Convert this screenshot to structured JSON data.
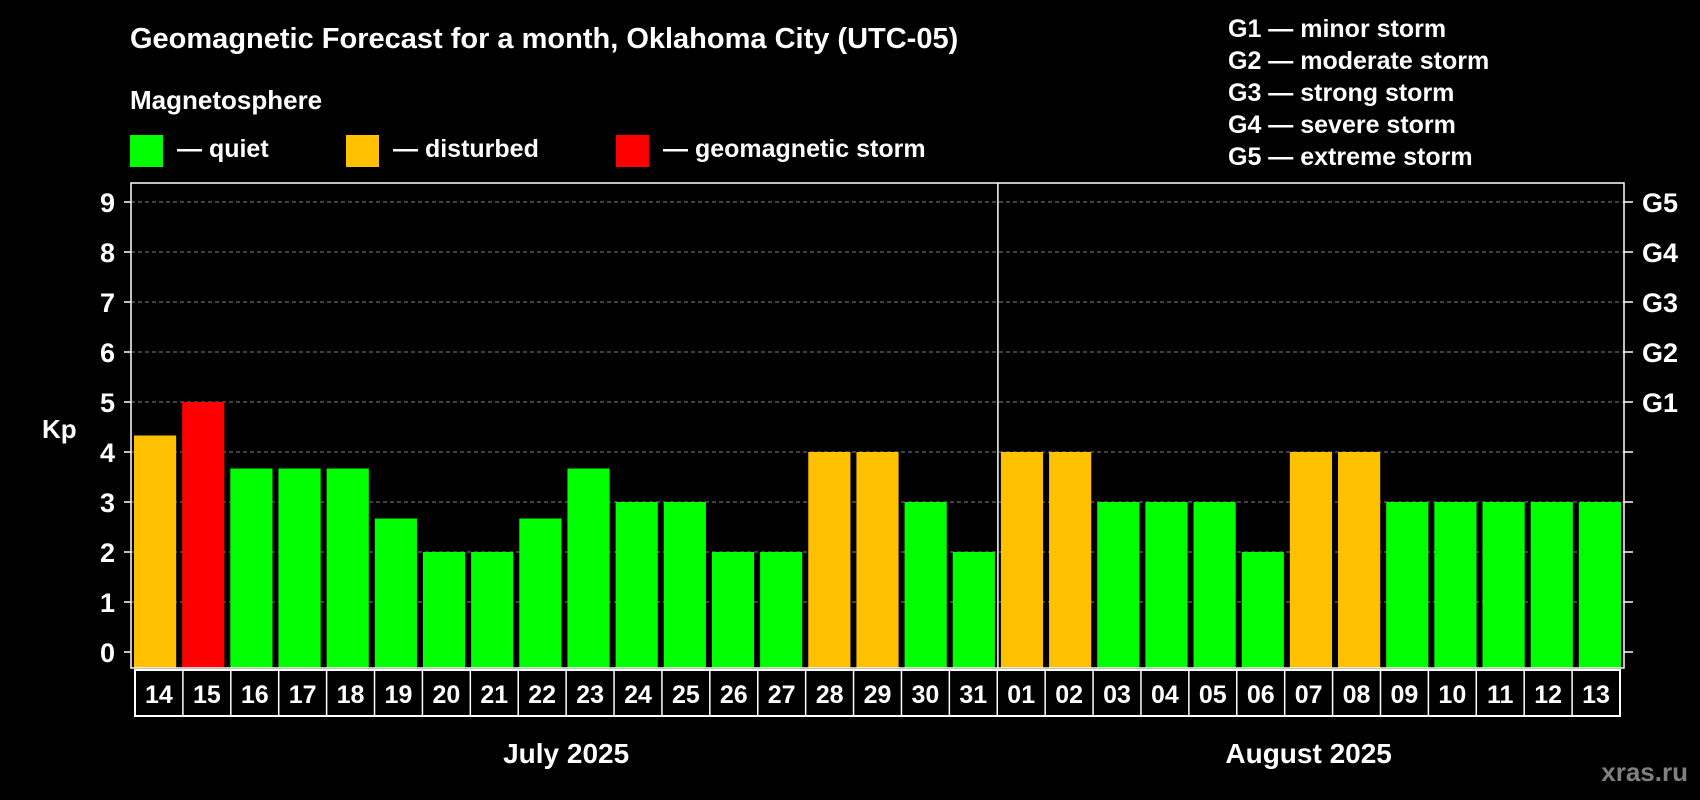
{
  "chart_data": {
    "type": "bar",
    "title": "Geomagnetic Forecast for a month, Oklahoma City (UTC-05)",
    "subtitle": "Magnetosphere",
    "ylabel": "Kp",
    "ylim": [
      0,
      9
    ],
    "yticks": [
      "0",
      "1",
      "2",
      "3",
      "4",
      "5",
      "6",
      "7",
      "8",
      "9"
    ],
    "right_ticks": [
      {
        "kp": 5,
        "label": "G1"
      },
      {
        "kp": 6,
        "label": "G2"
      },
      {
        "kp": 7,
        "label": "G3"
      },
      {
        "kp": 8,
        "label": "G4"
      },
      {
        "kp": 9,
        "label": "G5"
      }
    ],
    "legend": [
      {
        "label": "— quiet",
        "color": "#00ff00"
      },
      {
        "label": "— disturbed",
        "color": "#ffc000"
      },
      {
        "label": "— geomagnetic storm",
        "color": "#ff0000"
      }
    ],
    "storm_scale": [
      "G1 — minor storm",
      "G2 — moderate storm",
      "G3 — strong storm",
      "G4 — severe storm",
      "G5 — extreme storm"
    ],
    "months": [
      {
        "label": "July 2025",
        "start_index": 0,
        "end_index": 17
      },
      {
        "label": "August 2025",
        "start_index": 18,
        "end_index": 30
      }
    ],
    "categories": [
      "14",
      "15",
      "16",
      "17",
      "18",
      "19",
      "20",
      "21",
      "22",
      "23",
      "24",
      "25",
      "26",
      "27",
      "28",
      "29",
      "30",
      "31",
      "01",
      "02",
      "03",
      "04",
      "05",
      "06",
      "07",
      "08",
      "09",
      "10",
      "11",
      "12",
      "13"
    ],
    "values": [
      4.33,
      5,
      3.67,
      3.67,
      3.67,
      2.67,
      2,
      2,
      2.67,
      3.67,
      3,
      3,
      2,
      2,
      4,
      4,
      3,
      2,
      4,
      4,
      3,
      3,
      3,
      2,
      4,
      4,
      3,
      3,
      3,
      3,
      3
    ],
    "status": [
      "disturbed",
      "storm",
      "quiet",
      "quiet",
      "quiet",
      "quiet",
      "quiet",
      "quiet",
      "quiet",
      "quiet",
      "quiet",
      "quiet",
      "quiet",
      "quiet",
      "disturbed",
      "disturbed",
      "quiet",
      "quiet",
      "disturbed",
      "disturbed",
      "quiet",
      "quiet",
      "quiet",
      "quiet",
      "disturbed",
      "disturbed",
      "quiet",
      "quiet",
      "quiet",
      "quiet",
      "quiet"
    ],
    "colors": {
      "quiet": "#00ff00",
      "disturbed": "#ffc000",
      "storm": "#ff0000",
      "grid": "#808080",
      "axis": "#ffffff"
    },
    "grid": true
  },
  "watermark": "xras.ru"
}
